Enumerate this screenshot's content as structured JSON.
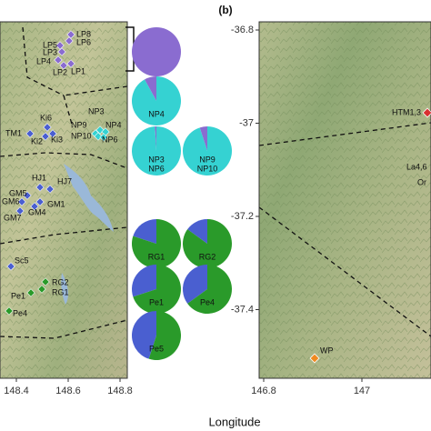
{
  "header": {
    "panel_label": "(b)",
    "x_axis_title": "Longitude"
  },
  "groups": [
    {
      "color": "#8a6cd0"
    },
    {
      "color": "#35d2d2"
    },
    {
      "color": "#4a5fd0"
    },
    {
      "color": "#2a9a2a"
    },
    {
      "color": "#d83030"
    },
    {
      "color": "#f08a20"
    }
  ],
  "left_map": {
    "xticks": [
      148.4,
      148.6,
      148.8
    ],
    "sites": [
      "LP8",
      "LP6",
      "LP5",
      "LP3",
      "LP4",
      "LP2",
      "LP1",
      "NP3",
      "NP9",
      "NP4",
      "NP10",
      "NP6",
      "Ki6",
      "TM1",
      "Ki2",
      "Ki3",
      "HJ1",
      "HJ7",
      "GM5",
      "GM6",
      "GM1",
      "GM4",
      "GM7",
      "Sc5",
      "RG2",
      "RG1",
      "Pe1",
      "Pe4"
    ]
  },
  "right_map": {
    "xticks": [
      146.8,
      147.0
    ],
    "yticks": [
      -36.8,
      -37.0,
      -37.2,
      -37.4
    ],
    "sites": [
      "HTM1,3",
      "La4,6",
      "Or",
      "WP"
    ]
  },
  "pies": [
    {
      "values": [
        100,
        0
      ]
    },
    {
      "label": [
        "NP4"
      ],
      "values": [
        8,
        92
      ]
    },
    {
      "label": [
        "NP3",
        "NP6"
      ],
      "values": [
        1,
        99
      ]
    },
    {
      "label": [
        "NP9",
        "NP10"
      ],
      "values": [
        5,
        95
      ]
    },
    {
      "label": [
        "RG1"
      ],
      "values": [
        20,
        80
      ]
    },
    {
      "label": [
        "RG2"
      ],
      "values": [
        15,
        85
      ]
    },
    {
      "label": [
        "Pe1"
      ],
      "values": [
        30,
        70
      ]
    },
    {
      "label": [
        "Pe4"
      ],
      "values": [
        35,
        65
      ]
    },
    {
      "label": [
        "Pe5"
      ],
      "values": [
        45,
        55
      ]
    }
  ]
}
